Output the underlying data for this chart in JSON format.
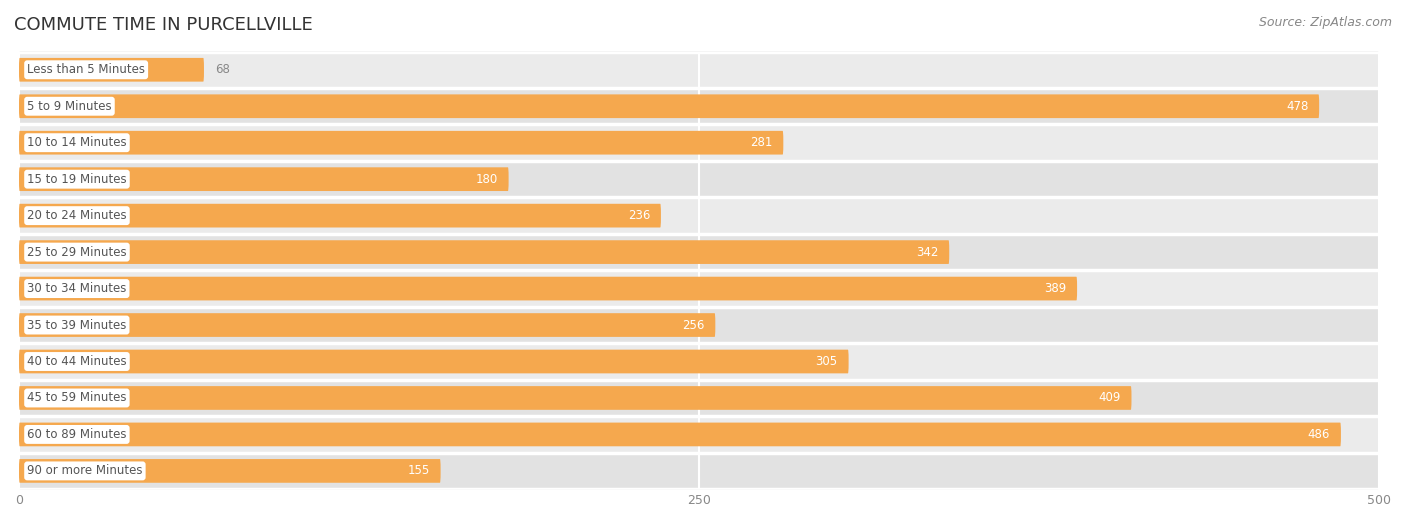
{
  "title": "COMMUTE TIME IN PURCELLVILLE",
  "source": "Source: ZipAtlas.com",
  "categories": [
    "Less than 5 Minutes",
    "5 to 9 Minutes",
    "10 to 14 Minutes",
    "15 to 19 Minutes",
    "20 to 24 Minutes",
    "25 to 29 Minutes",
    "30 to 34 Minutes",
    "35 to 39 Minutes",
    "40 to 44 Minutes",
    "45 to 59 Minutes",
    "60 to 89 Minutes",
    "90 or more Minutes"
  ],
  "values": [
    68,
    478,
    281,
    180,
    236,
    342,
    389,
    256,
    305,
    409,
    486,
    155
  ],
  "bar_color": "#F5A84E",
  "row_bg_color": "#EBEBEB",
  "row_bg_color2": "#E2E2E2",
  "label_box_color": "#FFFFFF",
  "label_text_color": "#555555",
  "title_color": "#333333",
  "source_color": "#888888",
  "value_inside_color": "#FFFFFF",
  "value_outside_color": "#888888",
  "xlim_max": 500,
  "xticks": [
    0,
    250,
    500
  ],
  "inside_threshold": 100,
  "title_fontsize": 13,
  "label_fontsize": 8.5,
  "value_fontsize": 8.5,
  "tick_fontsize": 9,
  "source_fontsize": 9
}
